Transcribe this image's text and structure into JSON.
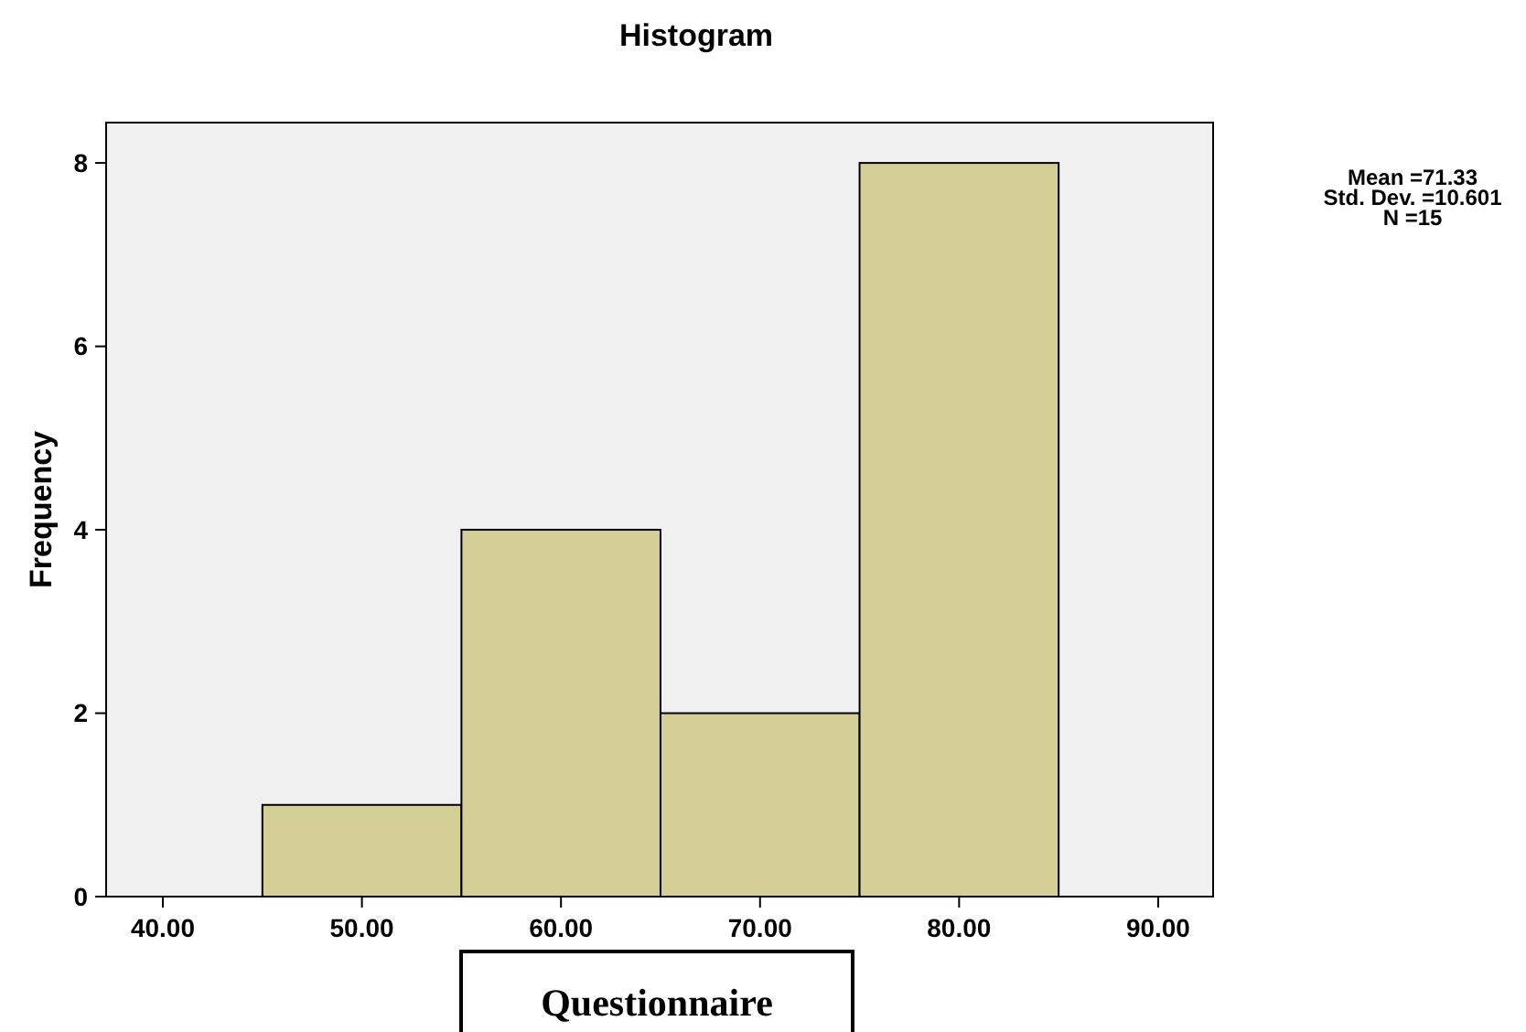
{
  "chart_data": {
    "type": "histogram",
    "title": "Histogram",
    "xlabel": "Questionnaire",
    "ylabel": "Frequency",
    "bins": [
      45,
      55,
      65,
      75,
      85
    ],
    "values": [
      1,
      4,
      2,
      8
    ],
    "color": "#d4cf97",
    "xlim": [
      37.15,
      92.76
    ],
    "ylim": [
      0,
      8.44
    ],
    "xticks": [
      {
        "value": 40,
        "label": "40.00"
      },
      {
        "value": 50,
        "label": "50.00"
      },
      {
        "value": 60,
        "label": "60.00"
      },
      {
        "value": 70,
        "label": "70.00"
      },
      {
        "value": 80,
        "label": "80.00"
      },
      {
        "value": 90,
        "label": "90.00"
      }
    ],
    "yticks": [
      0,
      2,
      4,
      6,
      8
    ],
    "annotations": [
      "Mean =71.33",
      "Std. Dev. =10.601",
      "N =15"
    ],
    "grid": false
  }
}
